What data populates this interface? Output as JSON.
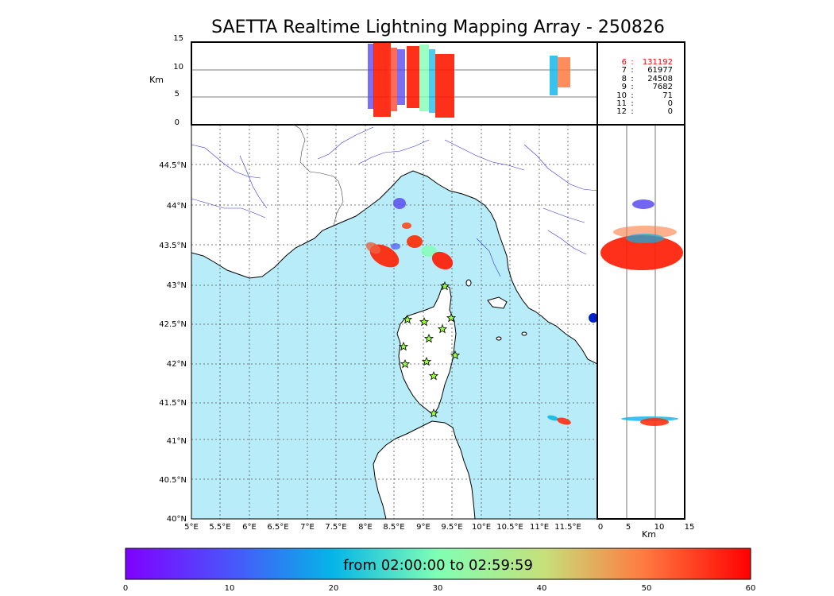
{
  "title": "SAETTA Realtime Lightning Mapping Array - 250826",
  "colorbar": {
    "label": "from 02:00:00 to 02:59:59",
    "ticks": [
      "0",
      "10",
      "20",
      "30",
      "40",
      "50",
      "60"
    ]
  },
  "altitude_axis": {
    "unit": "Km",
    "ticks": [
      "0",
      "5",
      "10",
      "15"
    ]
  },
  "side_axis": {
    "unit": "Km",
    "ticks": [
      "0",
      "5",
      "10",
      "15"
    ]
  },
  "map_axes": {
    "lon_ticks": [
      "5°E",
      "5.5°E",
      "6°E",
      "6.5°E",
      "7°E",
      "7.5°E",
      "8°E",
      "8.5°E",
      "9°E",
      "9.5°E",
      "10°E",
      "10.5°E",
      "11°E",
      "11.5°E"
    ],
    "lat_ticks": [
      "40°N",
      "40.5°N",
      "41°N",
      "41.5°N",
      "42°N",
      "42.5°N",
      "43°N",
      "43.5°N",
      "44°N",
      "44.5°N"
    ]
  },
  "station_counts": [
    {
      "level": "6",
      "sep": ":",
      "count": "131192",
      "highlight": true
    },
    {
      "level": "7",
      "sep": ":",
      "count": "61977",
      "highlight": false
    },
    {
      "level": "8",
      "sep": ":",
      "count": "24508",
      "highlight": false
    },
    {
      "level": "9",
      "sep": ":",
      "count": "7682",
      "highlight": false
    },
    {
      "level": "10",
      "sep": ":",
      "count": "71",
      "highlight": false
    },
    {
      "level": "11",
      "sep": ":",
      "count": "0",
      "highlight": false
    },
    {
      "level": "12",
      "sep": ":",
      "count": "0",
      "highlight": false
    }
  ],
  "colors": {
    "sea": "#b8ecf9",
    "land": "#ffffff",
    "rivers": "#3333dd",
    "station": "#99ff33",
    "highlight": "#ff0000"
  }
}
